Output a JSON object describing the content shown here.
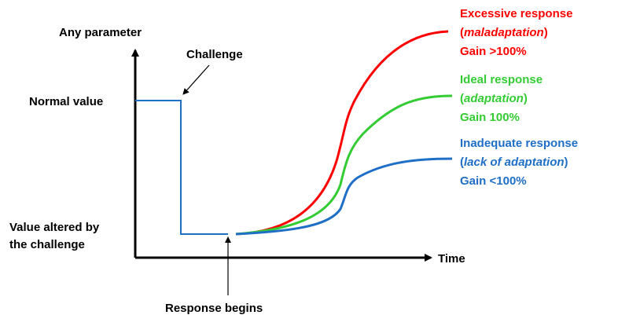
{
  "axes": {
    "y_label": "Any parameter",
    "x_label": "Time"
  },
  "levels": {
    "normal": "Normal value",
    "altered": [
      "Value altered by",
      "the challenge"
    ]
  },
  "annotations": {
    "challenge": "Challenge",
    "response_begins": "Response begins"
  },
  "curves": [
    {
      "name": "Excessive response",
      "open": "(",
      "italic": "maladaptation",
      "close": ")",
      "gain": "Gain >100%",
      "color": "#ff0000"
    },
    {
      "name": "Ideal response",
      "open": "(",
      "italic": "adaptation",
      "close": ")",
      "gain": "Gain 100%",
      "color": "#33cc33"
    },
    {
      "name": "Inadequate response",
      "open": "(",
      "italic": "lack of adaptation",
      "close": ")",
      "gain": "Gain <100%",
      "color": "#1f6fc6"
    }
  ]
}
